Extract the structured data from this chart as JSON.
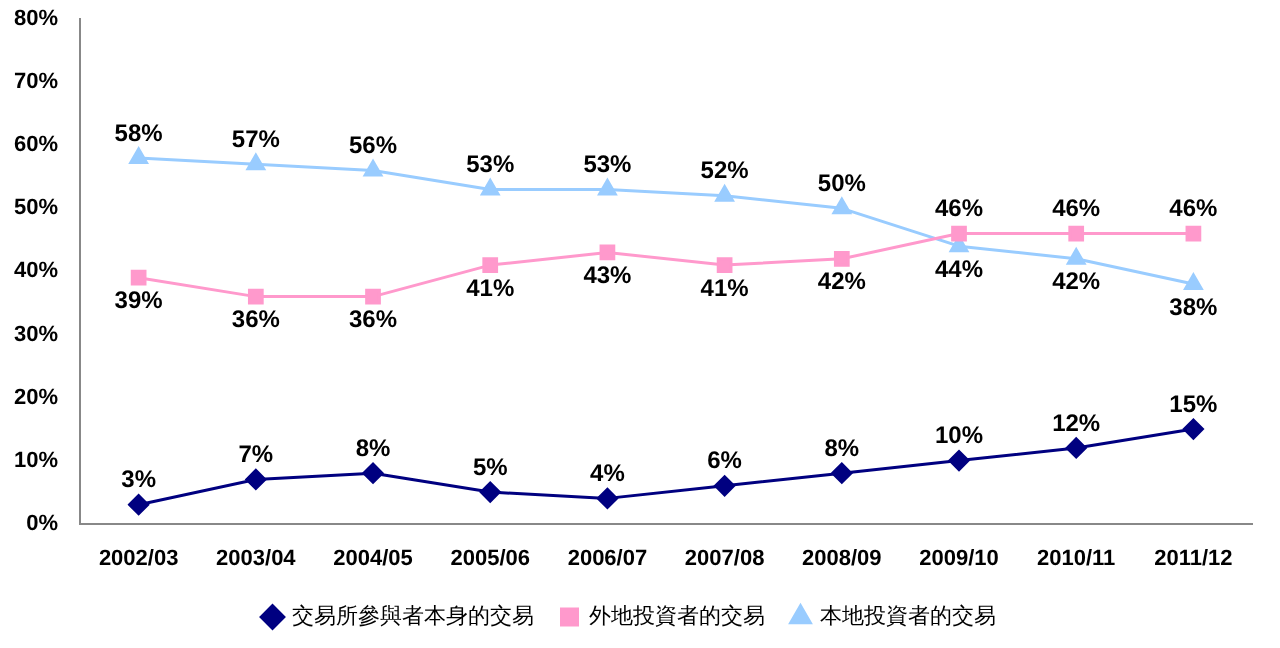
{
  "chart_data": {
    "type": "line",
    "categories": [
      "2002/03",
      "2003/04",
      "2004/05",
      "2005/06",
      "2006/07",
      "2007/08",
      "2008/09",
      "2009/10",
      "2010/11",
      "2011/12"
    ],
    "series": [
      {
        "name": "交易所參與者本身的交易",
        "color": "#000080",
        "marker": "diamond",
        "values": [
          3,
          7,
          8,
          5,
          4,
          6,
          8,
          10,
          12,
          15
        ],
        "value_labels": [
          "3%",
          "7%",
          "8%",
          "5%",
          "4%",
          "6%",
          "8%",
          "10%",
          "12%",
          "15%"
        ]
      },
      {
        "name": "外地投資者的交易",
        "color": "#ff99cc",
        "marker": "square",
        "values": [
          39,
          36,
          36,
          41,
          43,
          41,
          42,
          46,
          46,
          46
        ],
        "value_labels": [
          "39%",
          "36%",
          "36%",
          "41%",
          "43%",
          "41%",
          "42%",
          "46%",
          "46%",
          "46%"
        ]
      },
      {
        "name": "本地投資者的交易",
        "color": "#99ccff",
        "marker": "triangle",
        "values": [
          58,
          57,
          56,
          53,
          53,
          52,
          50,
          44,
          42,
          38
        ],
        "value_labels": [
          "58%",
          "57%",
          "56%",
          "53%",
          "53%",
          "52%",
          "50%",
          "44%",
          "42%",
          "38%"
        ]
      }
    ],
    "ylim": [
      0,
      80
    ],
    "yticks": [
      {
        "value": 0,
        "label": "0%"
      },
      {
        "value": 10,
        "label": "10%"
      },
      {
        "value": 20,
        "label": "20%"
      },
      {
        "value": 30,
        "label": "30%"
      },
      {
        "value": 40,
        "label": "40%"
      },
      {
        "value": 50,
        "label": "50%"
      },
      {
        "value": 60,
        "label": "60%"
      },
      {
        "value": 70,
        "label": "70%"
      },
      {
        "value": 80,
        "label": "80%"
      }
    ],
    "grid": false,
    "legend": "bottom"
  }
}
